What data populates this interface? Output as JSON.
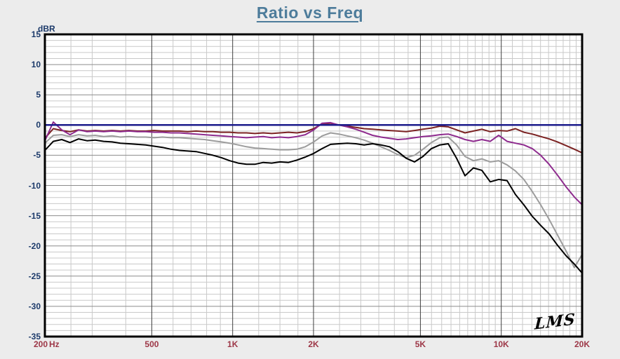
{
  "title": "Ratio vs Freq",
  "logo": {
    "text": "LMS"
  },
  "y_axis": {
    "label": "dBR",
    "ticks": [
      15,
      10,
      5,
      0,
      -5,
      -10,
      -15,
      -20,
      -25,
      -30,
      -35
    ]
  },
  "x_axis": {
    "unit_label": "Hz",
    "ticks": [
      {
        "f": 200,
        "label": "200"
      },
      {
        "f": 500,
        "label": "500"
      },
      {
        "f": 1000,
        "label": "1K"
      },
      {
        "f": 2000,
        "label": "2K"
      },
      {
        "f": 5000,
        "label": "5K"
      },
      {
        "f": 10000,
        "label": "10K"
      },
      {
        "f": 20000,
        "label": "20K"
      }
    ]
  },
  "colors": {
    "background": "#ececec",
    "plot_background": "#ffffff",
    "title": "#4d7c9b",
    "y_tick": "#1c3a6a",
    "x_tick": "#9d3747",
    "grid_minor": "#c9c9c9",
    "grid_major_h": "#8c8c8c",
    "grid_major_v": "#3f3f3f",
    "border": "#000000",
    "reference": "#1c1c8c"
  },
  "chart_data": {
    "type": "line",
    "title": "Ratio vs Freq",
    "xlabel": "Hz",
    "ylabel": "dBR",
    "xscale": "log",
    "xlim": [
      200,
      20000
    ],
    "ylim": [
      -35,
      15
    ],
    "grid": true,
    "legend": false,
    "reference_line": {
      "name": "zero-dB-reference",
      "y": 0,
      "color": "#1c1c8c"
    },
    "x": [
      200,
      215,
      231,
      248,
      267,
      287,
      308,
      331,
      356,
      382,
      411,
      442,
      475,
      510,
      548,
      589,
      633,
      680,
      731,
      786,
      844,
      907,
      975,
      1048,
      1126,
      1210,
      1300,
      1398,
      1502,
      1614,
      1735,
      1864,
      2004,
      2153,
      2314,
      2487,
      2673,
      2873,
      3087,
      3318,
      3566,
      3832,
      4119,
      4426,
      4757,
      5112,
      5494,
      5905,
      6346,
      6820,
      7330,
      7877,
      8466,
      9099,
      9778,
      10509,
      11294,
      12138,
      13045,
      14020,
      15068,
      16194,
      17404,
      18705,
      20000
    ],
    "series": [
      {
        "name": "gray",
        "color": "#9c9c9c",
        "values": [
          -3.0,
          -1.7,
          -1.6,
          -1.9,
          -1.6,
          -1.8,
          -1.7,
          -1.9,
          -1.8,
          -2.0,
          -1.9,
          -2.0,
          -2.0,
          -2.1,
          -2.0,
          -2.1,
          -2.1,
          -2.2,
          -2.3,
          -2.4,
          -2.6,
          -2.8,
          -3.0,
          -3.3,
          -3.6,
          -3.8,
          -3.9,
          -4.0,
          -4.1,
          -4.1,
          -4.0,
          -3.6,
          -2.8,
          -1.8,
          -1.3,
          -1.5,
          -1.8,
          -2.1,
          -2.5,
          -3.0,
          -3.6,
          -4.2,
          -4.9,
          -5.4,
          -5.0,
          -4.0,
          -2.9,
          -2.1,
          -2.0,
          -3.3,
          -5.2,
          -5.9,
          -5.6,
          -6.1,
          -5.9,
          -6.6,
          -7.6,
          -9.0,
          -11.0,
          -13.2,
          -15.6,
          -18.2,
          -20.8,
          -23.6,
          -21.4
        ]
      },
      {
        "name": "black",
        "color": "#000000",
        "values": [
          -4.2,
          -2.7,
          -2.4,
          -2.9,
          -2.3,
          -2.6,
          -2.5,
          -2.7,
          -2.8,
          -3.0,
          -3.1,
          -3.2,
          -3.3,
          -3.5,
          -3.7,
          -4.0,
          -4.2,
          -4.3,
          -4.4,
          -4.7,
          -5.0,
          -5.4,
          -5.9,
          -6.3,
          -6.5,
          -6.5,
          -6.2,
          -6.3,
          -6.1,
          -6.2,
          -5.8,
          -5.3,
          -4.7,
          -3.9,
          -3.2,
          -3.1,
          -3.0,
          -3.1,
          -3.3,
          -3.1,
          -3.3,
          -3.6,
          -4.4,
          -5.5,
          -6.1,
          -5.2,
          -3.9,
          -3.3,
          -3.1,
          -5.5,
          -8.4,
          -7.1,
          -7.5,
          -9.4,
          -9.0,
          -9.2,
          -11.5,
          -13.2,
          -15.1,
          -16.6,
          -18.0,
          -19.9,
          -21.6,
          -23.0,
          -24.5
        ]
      },
      {
        "name": "dark-red",
        "color": "#7b2222",
        "values": [
          -2.2,
          -0.6,
          -0.9,
          -1.1,
          -0.8,
          -1.0,
          -0.9,
          -1.0,
          -0.9,
          -1.0,
          -0.9,
          -1.0,
          -1.0,
          -0.9,
          -1.0,
          -1.0,
          -1.0,
          -1.1,
          -1.0,
          -1.1,
          -1.1,
          -1.2,
          -1.2,
          -1.3,
          -1.3,
          -1.4,
          -1.3,
          -1.4,
          -1.3,
          -1.2,
          -1.3,
          -1.1,
          -0.6,
          0.2,
          0.3,
          0.0,
          -0.2,
          -0.4,
          -0.6,
          -0.7,
          -0.8,
          -0.9,
          -1.0,
          -1.1,
          -0.9,
          -0.7,
          -0.5,
          -0.2,
          -0.3,
          -0.8,
          -1.3,
          -1.0,
          -0.7,
          -1.1,
          -0.9,
          -1.0,
          -0.6,
          -1.2,
          -1.5,
          -1.9,
          -2.3,
          -2.8,
          -3.4,
          -4.0,
          -4.6
        ]
      },
      {
        "name": "purple",
        "color": "#8e2b8e",
        "values": [
          -2.6,
          0.5,
          -0.8,
          -1.6,
          -0.8,
          -1.1,
          -1.0,
          -1.1,
          -1.0,
          -1.1,
          -1.0,
          -1.1,
          -1.1,
          -1.2,
          -1.2,
          -1.3,
          -1.3,
          -1.4,
          -1.5,
          -1.6,
          -1.7,
          -1.8,
          -1.9,
          -2.0,
          -2.1,
          -2.0,
          -1.9,
          -2.1,
          -2.0,
          -2.1,
          -1.9,
          -1.6,
          -0.8,
          0.3,
          0.4,
          0.0,
          -0.3,
          -0.7,
          -1.2,
          -1.7,
          -2.0,
          -2.2,
          -2.4,
          -2.3,
          -2.1,
          -1.9,
          -1.8,
          -1.6,
          -1.5,
          -1.9,
          -2.4,
          -2.7,
          -2.4,
          -2.7,
          -1.7,
          -2.7,
          -3.0,
          -3.3,
          -3.9,
          -5.0,
          -6.5,
          -8.3,
          -10.2,
          -11.9,
          -13.2
        ]
      }
    ]
  }
}
